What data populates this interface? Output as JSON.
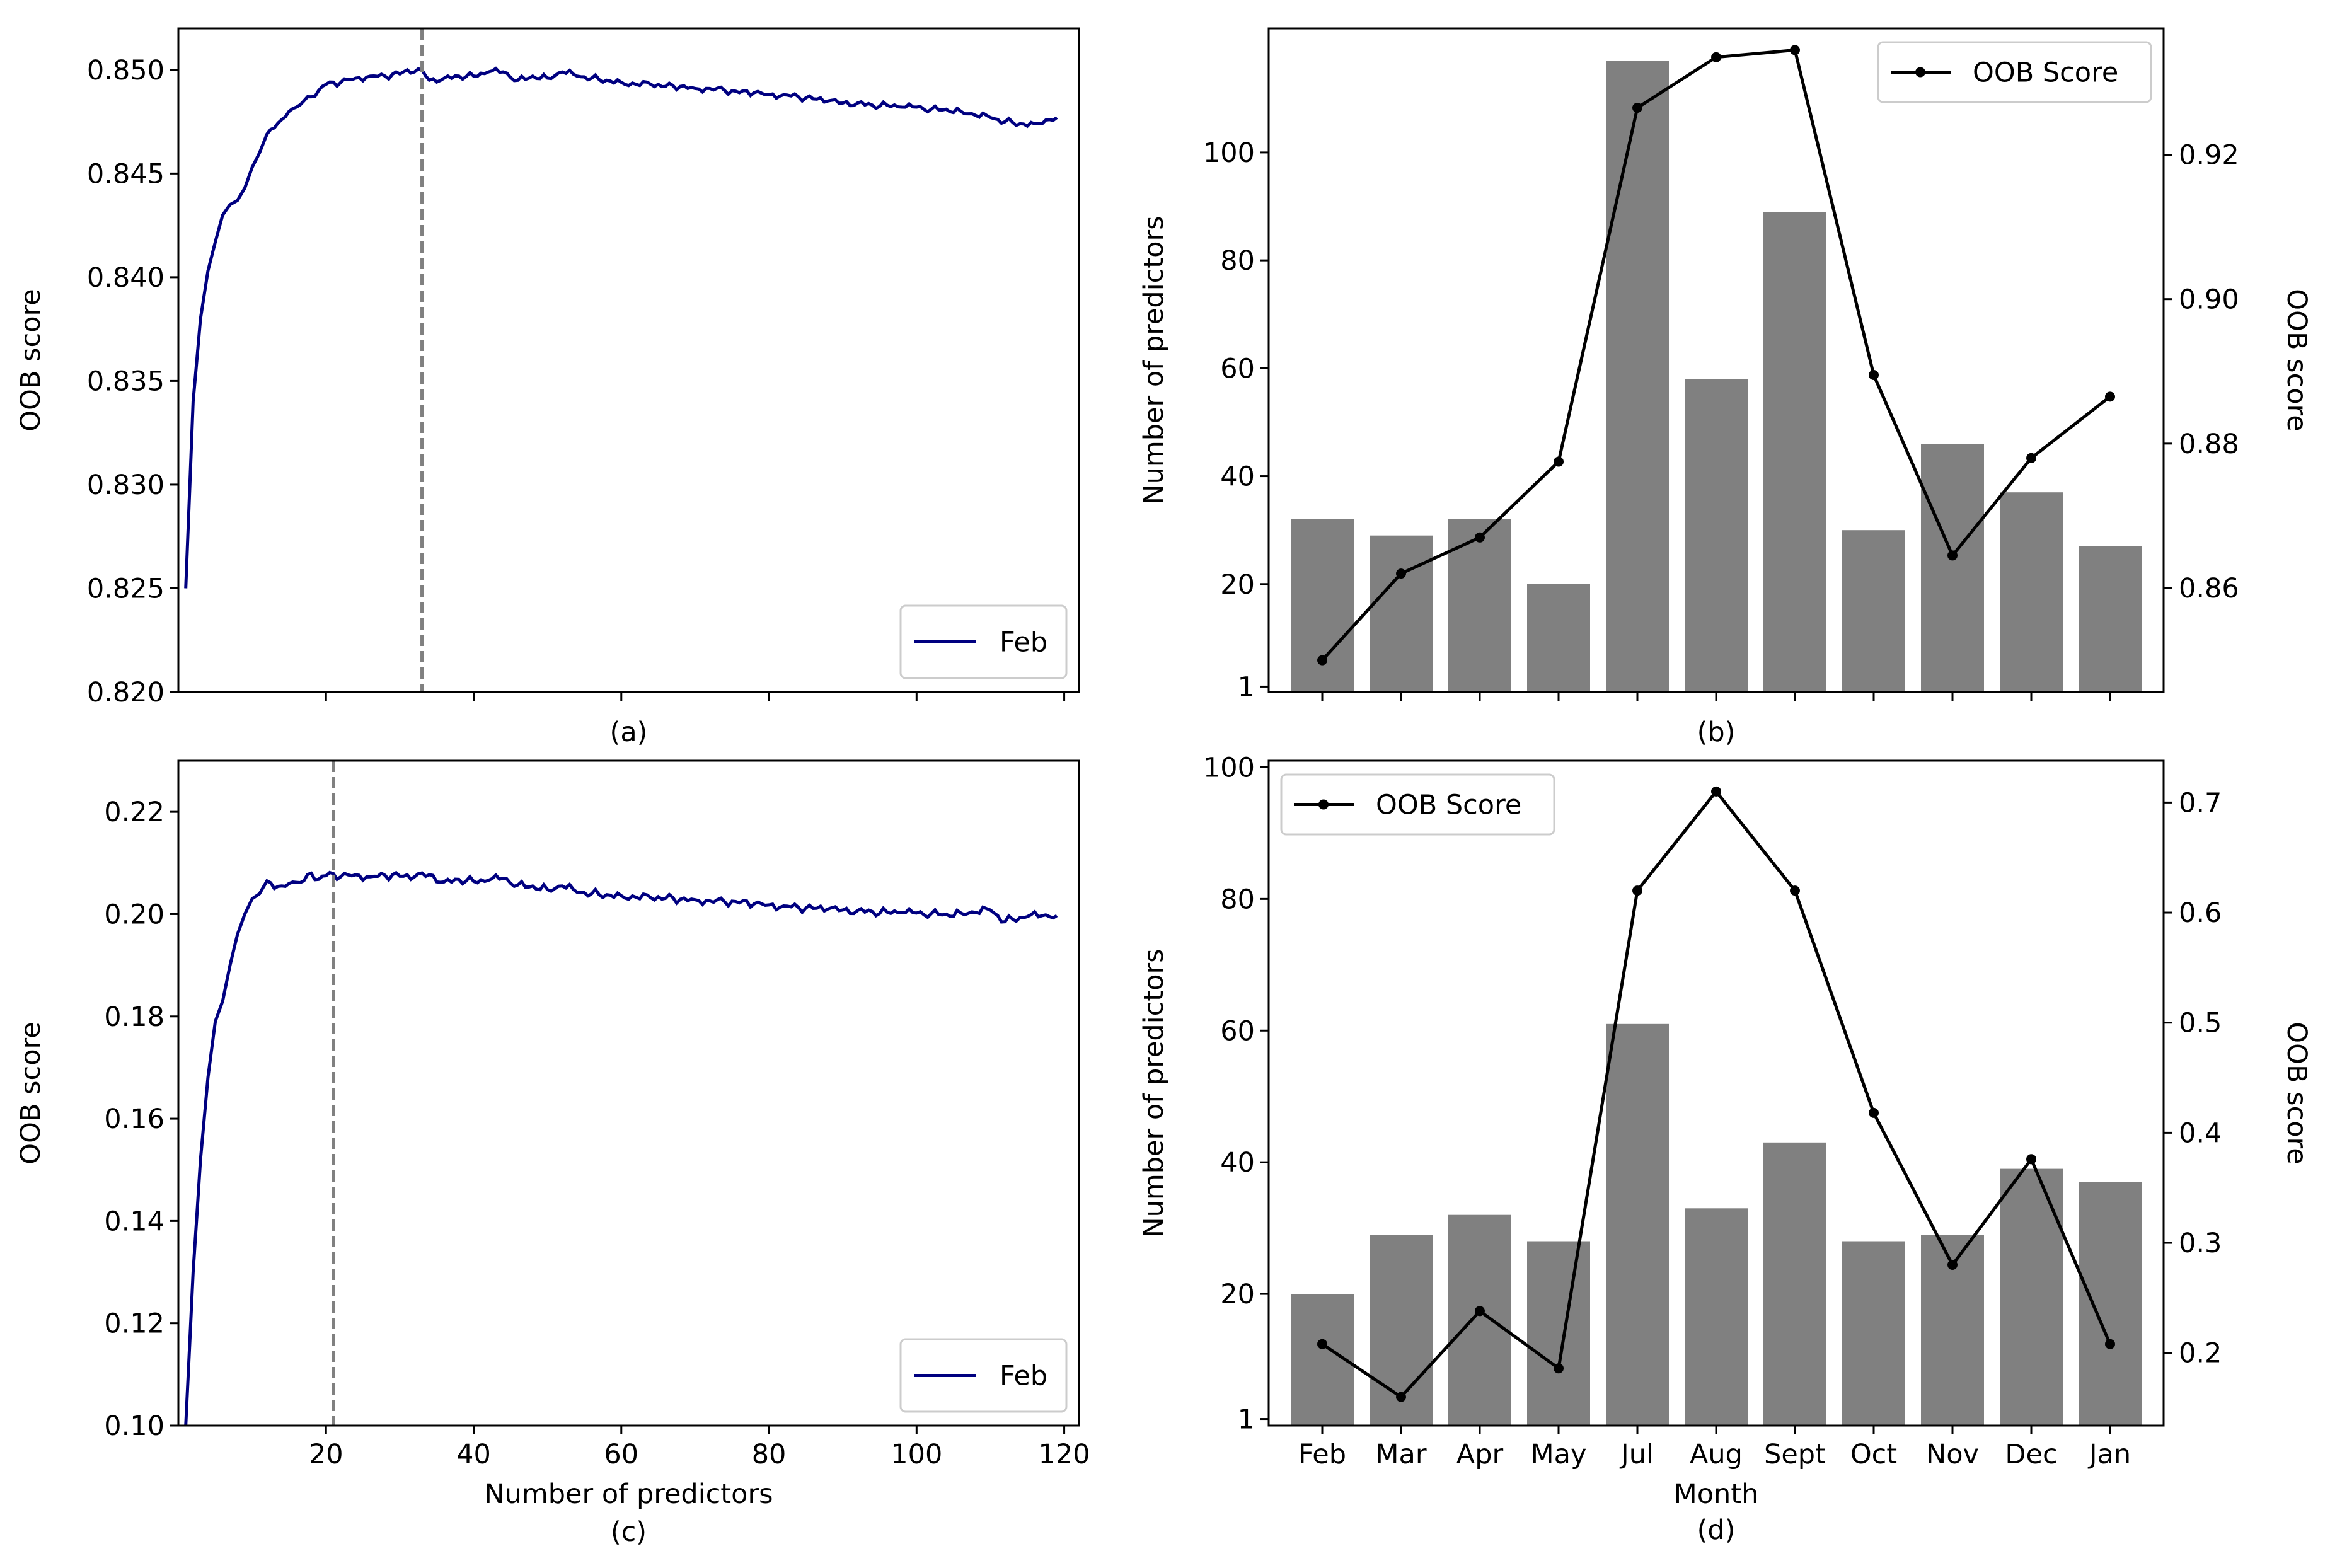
{
  "colors": {
    "line": "#000080",
    "bar": "#808080",
    "vline": "#808080",
    "oob": "#000000"
  },
  "chart_data": [
    {
      "panel_label": "(a)",
      "type": "line",
      "ylabel": "OOB score",
      "xlabel": "",
      "xlim": [
        0,
        122
      ],
      "ylim": [
        0.82,
        0.852
      ],
      "yticks": [
        0.82,
        0.825,
        0.83,
        0.835,
        0.84,
        0.845,
        0.85
      ],
      "yticklabels": [
        "0.820",
        "0.825",
        "0.830",
        "0.835",
        "0.840",
        "0.845",
        "0.850"
      ],
      "xticks": [
        20,
        40,
        60,
        80,
        100,
        120
      ],
      "xticklabels": [],
      "vline_x": 33,
      "legend": {
        "label": "Feb",
        "placement": "lower-right"
      },
      "anchors": [
        [
          1,
          0.825
        ],
        [
          2,
          0.834
        ],
        [
          3,
          0.838
        ],
        [
          4,
          0.8403
        ],
        [
          5,
          0.8417
        ],
        [
          6,
          0.843
        ],
        [
          7,
          0.8435
        ],
        [
          8,
          0.8437
        ],
        [
          9,
          0.8443
        ],
        [
          10,
          0.8453
        ],
        [
          11,
          0.846
        ],
        [
          12,
          0.8469
        ],
        [
          13,
          0.8472
        ],
        [
          14,
          0.8476
        ],
        [
          15,
          0.848
        ],
        [
          16,
          0.8482
        ],
        [
          17,
          0.8485
        ],
        [
          18,
          0.8487
        ],
        [
          19,
          0.849
        ],
        [
          20,
          0.8493
        ],
        [
          22,
          0.8494
        ],
        [
          24,
          0.8496
        ],
        [
          26,
          0.8497
        ],
        [
          28,
          0.8497
        ],
        [
          30,
          0.8498
        ],
        [
          31,
          0.85
        ],
        [
          32,
          0.8499
        ],
        [
          33,
          0.85
        ],
        [
          34,
          0.8495
        ],
        [
          36,
          0.8496
        ],
        [
          38,
          0.8497
        ],
        [
          40,
          0.8497
        ],
        [
          42,
          0.8499
        ],
        [
          44,
          0.8499
        ],
        [
          46,
          0.8495
        ],
        [
          48,
          0.8497
        ],
        [
          50,
          0.8496
        ],
        [
          52,
          0.8499
        ],
        [
          54,
          0.8497
        ],
        [
          56,
          0.8496
        ],
        [
          58,
          0.8495
        ],
        [
          60,
          0.8494
        ],
        [
          62,
          0.8493
        ],
        [
          64,
          0.8493
        ],
        [
          66,
          0.8492
        ],
        [
          68,
          0.8492
        ],
        [
          70,
          0.8491
        ],
        [
          72,
          0.8491
        ],
        [
          74,
          0.849
        ],
        [
          76,
          0.8489
        ],
        [
          78,
          0.8489
        ],
        [
          80,
          0.8488
        ],
        [
          82,
          0.8488
        ],
        [
          84,
          0.8487
        ],
        [
          86,
          0.8486
        ],
        [
          88,
          0.8485
        ],
        [
          90,
          0.8484
        ],
        [
          92,
          0.8484
        ],
        [
          94,
          0.8483
        ],
        [
          96,
          0.8483
        ],
        [
          98,
          0.8482
        ],
        [
          100,
          0.8482
        ],
        [
          102,
          0.8481
        ],
        [
          104,
          0.8481
        ],
        [
          106,
          0.848
        ],
        [
          108,
          0.8478
        ],
        [
          110,
          0.8477
        ],
        [
          112,
          0.8475
        ],
        [
          114,
          0.8474
        ],
        [
          116,
          0.8474
        ],
        [
          118,
          0.8476
        ],
        [
          119,
          0.8477
        ]
      ],
      "noise_amp": 0.00018
    },
    {
      "panel_label": "(b)",
      "type": "bar+line",
      "ylabel": "Number of predictors",
      "y2label": "OOB score",
      "categories": [
        "Feb",
        "Mar",
        "Apr",
        "May",
        "Jul",
        "Aug",
        "Sept",
        "Oct",
        "Nov",
        "Dec",
        "Jan"
      ],
      "bars": [
        32,
        29,
        32,
        20,
        117,
        58,
        89,
        30,
        46,
        37,
        27
      ],
      "ylim": [
        0,
        123
      ],
      "yticks": [
        1,
        20,
        40,
        60,
        80,
        100
      ],
      "yticklabels": [
        "1",
        "20",
        "40",
        "60",
        "80",
        "100"
      ],
      "oob": [
        0.85,
        0.862,
        0.867,
        0.8775,
        0.9265,
        0.9335,
        0.9345,
        0.8895,
        0.8645,
        0.878,
        0.8865
      ],
      "y2lim": [
        0.8456,
        0.9375
      ],
      "y2ticks": [
        0.86,
        0.88,
        0.9,
        0.92
      ],
      "y2ticklabels": [
        "0.86",
        "0.88",
        "0.90",
        "0.92"
      ],
      "legend": {
        "label": "OOB Score",
        "placement": "upper-right"
      },
      "show_xticklabels": false
    },
    {
      "panel_label": "(c)",
      "type": "line",
      "ylabel": "OOB score",
      "xlabel": "Number of predictors",
      "xlim": [
        0,
        122
      ],
      "ylim": [
        0.1,
        0.23
      ],
      "yticks": [
        0.1,
        0.12,
        0.14,
        0.16,
        0.18,
        0.2,
        0.22
      ],
      "yticklabels": [
        "0.10",
        "0.12",
        "0.14",
        "0.16",
        "0.18",
        "0.20",
        "0.22"
      ],
      "xticks": [
        20,
        40,
        60,
        80,
        100,
        120
      ],
      "xticklabels": [
        "20",
        "40",
        "60",
        "80",
        "100",
        "120"
      ],
      "vline_x": 21,
      "legend": {
        "label": "Feb",
        "placement": "lower-right"
      },
      "anchors": [
        [
          1,
          0.1
        ],
        [
          2,
          0.13
        ],
        [
          3,
          0.152
        ],
        [
          4,
          0.168
        ],
        [
          5,
          0.179
        ],
        [
          6,
          0.183
        ],
        [
          7,
          0.19
        ],
        [
          8,
          0.196
        ],
        [
          9,
          0.2
        ],
        [
          10,
          0.203
        ],
        [
          11,
          0.204
        ],
        [
          12,
          0.2065
        ],
        [
          13,
          0.205
        ],
        [
          14,
          0.2055
        ],
        [
          15,
          0.206
        ],
        [
          16,
          0.2062
        ],
        [
          17,
          0.2065
        ],
        [
          18,
          0.208
        ],
        [
          19,
          0.2068
        ],
        [
          20,
          0.2075
        ],
        [
          21,
          0.2079
        ],
        [
          22,
          0.2073
        ],
        [
          24,
          0.2077
        ],
        [
          26,
          0.2073
        ],
        [
          28,
          0.2076
        ],
        [
          30,
          0.2074
        ],
        [
          32,
          0.2073
        ],
        [
          34,
          0.2077
        ],
        [
          36,
          0.2063
        ],
        [
          38,
          0.2068
        ],
        [
          40,
          0.2064
        ],
        [
          42,
          0.2066
        ],
        [
          44,
          0.207
        ],
        [
          46,
          0.2057
        ],
        [
          48,
          0.2055
        ],
        [
          50,
          0.2048
        ],
        [
          52,
          0.2055
        ],
        [
          54,
          0.2043
        ],
        [
          56,
          0.204
        ],
        [
          58,
          0.2038
        ],
        [
          60,
          0.2036
        ],
        [
          62,
          0.2033
        ],
        [
          64,
          0.2032
        ],
        [
          66,
          0.2031
        ],
        [
          68,
          0.2029
        ],
        [
          70,
          0.2028
        ],
        [
          72,
          0.2026
        ],
        [
          74,
          0.2024
        ],
        [
          76,
          0.2022
        ],
        [
          78,
          0.202
        ],
        [
          80,
          0.2018
        ],
        [
          82,
          0.2016
        ],
        [
          84,
          0.2013
        ],
        [
          86,
          0.2011
        ],
        [
          88,
          0.201
        ],
        [
          90,
          0.2008
        ],
        [
          92,
          0.2007
        ],
        [
          94,
          0.2005
        ],
        [
          96,
          0.2004
        ],
        [
          98,
          0.2003
        ],
        [
          100,
          0.2002
        ],
        [
          102,
          0.2001
        ],
        [
          104,
          0.2
        ],
        [
          106,
          0.2002
        ],
        [
          108,
          0.2003
        ],
        [
          110,
          0.2008
        ],
        [
          112,
          0.1985
        ],
        [
          113,
          0.199
        ],
        [
          115,
          0.1995
        ],
        [
          117,
          0.1997
        ],
        [
          119,
          0.1997
        ]
      ],
      "noise_amp": 0.0009
    },
    {
      "panel_label": "(d)",
      "type": "bar+line",
      "xlabel": "Month",
      "ylabel": "Number of predictors",
      "y2label": "OOB score",
      "categories": [
        "Feb",
        "Mar",
        "Apr",
        "May",
        "Jul",
        "Aug",
        "Sept",
        "Oct",
        "Nov",
        "Dec",
        "Jan"
      ],
      "bars": [
        20,
        29,
        32,
        28,
        61,
        33,
        43,
        28,
        29,
        39,
        37
      ],
      "ylim": [
        0,
        101
      ],
      "yticks": [
        1,
        20,
        40,
        60,
        80,
        100
      ],
      "yticklabels": [
        "1",
        "20",
        "40",
        "60",
        "80",
        "100"
      ],
      "oob": [
        0.208,
        0.16,
        0.238,
        0.186,
        0.62,
        0.71,
        0.62,
        0.418,
        0.28,
        0.376,
        0.208
      ],
      "y2lim": [
        0.134,
        0.738
      ],
      "y2ticks": [
        0.2,
        0.3,
        0.4,
        0.5,
        0.6,
        0.7
      ],
      "y2ticklabels": [
        "0.2",
        "0.3",
        "0.4",
        "0.5",
        "0.6",
        "0.7"
      ],
      "legend": {
        "label": "OOB Score",
        "placement": "upper-left"
      },
      "show_xticklabels": true
    }
  ]
}
